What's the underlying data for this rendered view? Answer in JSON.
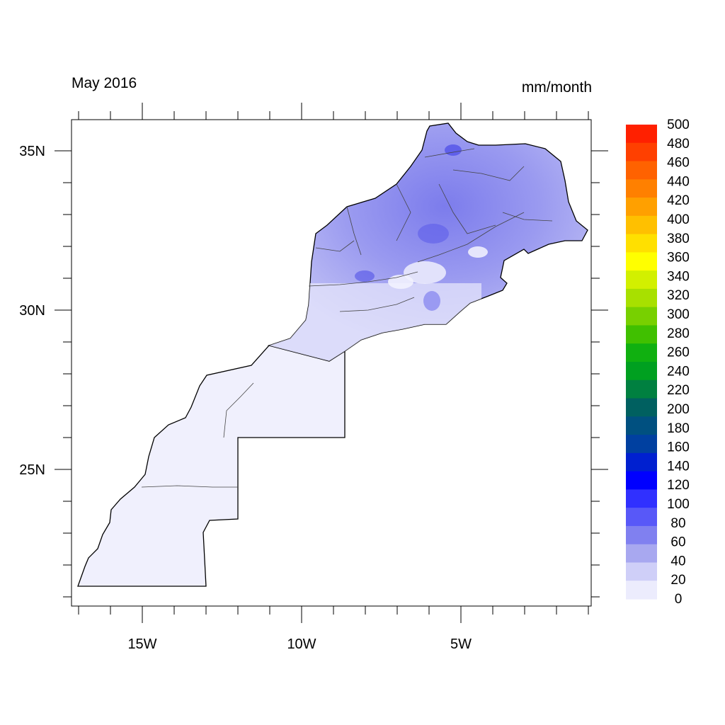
{
  "title_left": "May 2016",
  "title_right": "mm/month",
  "map": {
    "lon_range": [
      -17.2,
      -1.0
    ],
    "lat_range": [
      20.7,
      36.0
    ],
    "lat_ticks": [
      {
        "value": 35,
        "label": "35N"
      },
      {
        "value": 30,
        "label": "30N"
      },
      {
        "value": 25,
        "label": "25N"
      }
    ],
    "lon_ticks": [
      {
        "value": -15,
        "label": "15W"
      },
      {
        "value": -10,
        "label": "10W"
      },
      {
        "value": -5,
        "label": "5W"
      }
    ],
    "region": "Morocco"
  },
  "colorbar": {
    "labels": [
      "500",
      "480",
      "460",
      "440",
      "420",
      "400",
      "380",
      "360",
      "340",
      "320",
      "300",
      "280",
      "260",
      "240",
      "220",
      "200",
      "180",
      "160",
      "140",
      "120",
      "100",
      "80",
      "60",
      "40",
      "20",
      "0"
    ],
    "colors": [
      "#ff2000",
      "#ff4000",
      "#ff6200",
      "#ff8000",
      "#ffa000",
      "#ffc000",
      "#ffe000",
      "#ffff00",
      "#d2f000",
      "#a8e000",
      "#78d000",
      "#40c000",
      "#10b010",
      "#00a020",
      "#008040",
      "#006060",
      "#005080",
      "#0040a0",
      "#0020d0",
      "#0000ff",
      "#3030ff",
      "#5858f8",
      "#8080f0",
      "#a8a8f0",
      "#cfcff8",
      "#ececfd"
    ]
  }
}
